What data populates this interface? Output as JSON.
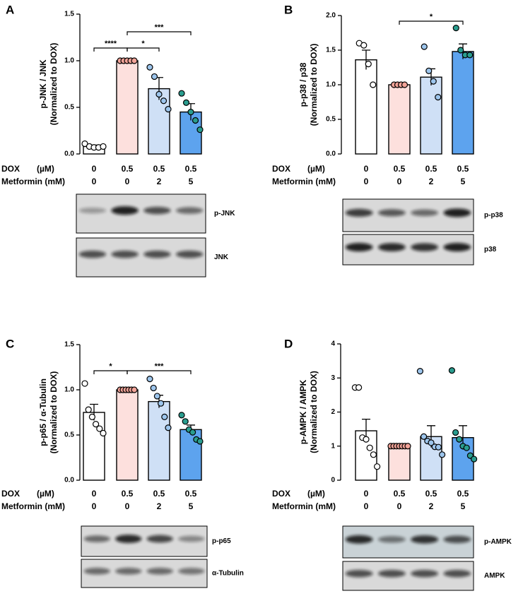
{
  "chart_data": [
    {
      "type": "bar",
      "panel": "A",
      "ylabel": [
        "p-JNK / JNK",
        "(Normalized to DOX)"
      ],
      "ylim": [
        0,
        1.5
      ],
      "yticks": [
        {
          "value": 0,
          "label": "0.0"
        },
        0.5,
        {
          "value": 1,
          "label": "1.0"
        },
        1.5
      ],
      "values": [
        0.08,
        1.0,
        0.7,
        0.45
      ],
      "errors": [
        0.015,
        0,
        0.12,
        0.09
      ],
      "colors": [
        "#ffffff",
        "#fde0dd",
        "#cfe0f6",
        "#5da3ee"
      ],
      "point_colors": [
        "#ffffff",
        "#f2a398",
        "#9dc5ec",
        "#2a9d8f"
      ],
      "points": [
        [
          0.11,
          0.08,
          0.07,
          0.07,
          0.08
        ],
        [
          1,
          1,
          1,
          1,
          1
        ],
        [
          0.93,
          0.83,
          0.64,
          0.57,
          0.48
        ],
        [
          0.65,
          0.55,
          0.45,
          0.36,
          0.26
        ]
      ],
      "conditions": [
        {
          "name": "DOX",
          "unit": "(µM)",
          "values": [
            0,
            0.5,
            0.5,
            0.5
          ]
        },
        {
          "name": "Metformin (mM)",
          "values": [
            0,
            0,
            2,
            5
          ]
        }
      ],
      "brackets": [
        {
          "pair": [
            0,
            1
          ],
          "label": "****"
        },
        {
          "pair": [
            1,
            2
          ],
          "label": "*"
        },
        {
          "pair": [
            1,
            3
          ],
          "label": "***"
        }
      ],
      "blots": [
        "p-JNK",
        "JNK"
      ]
    },
    {
      "type": "bar",
      "panel": "B",
      "ylabel": [
        "p-p38 / p38",
        "(Normalized to DOX)"
      ],
      "ylim": [
        0,
        2
      ],
      "yticks": [
        {
          "value": 0,
          "label": "0.0"
        },
        0.5,
        {
          "value": 1,
          "label": "1.0"
        },
        1.5,
        {
          "value": 2,
          "label": "2.0"
        }
      ],
      "values": [
        1.36,
        1.0,
        1.11,
        1.48
      ],
      "errors": [
        0.14,
        0,
        0.12,
        0.11
      ],
      "colors": [
        "#ffffff",
        "#fde0dd",
        "#cfe0f6",
        "#5da3ee"
      ],
      "point_colors": [
        "#ffffff",
        "#f2a398",
        "#9dc5ec",
        "#2a9d8f"
      ],
      "points": [
        [
          1.6,
          1.57,
          1.3,
          1.0
        ],
        [
          1,
          1,
          1,
          1
        ],
        [
          1.55,
          1.2,
          1.05,
          0.82
        ],
        [
          1.82,
          1.5,
          1.43,
          1.43
        ]
      ],
      "conditions": [
        {
          "name": "DOX",
          "unit": "(µM)",
          "values": [
            0,
            0.5,
            0.5,
            0.5
          ]
        },
        {
          "name": "Metformin (mM)",
          "values": [
            0,
            0,
            2,
            5
          ]
        }
      ],
      "brackets": [
        {
          "pair": [
            1,
            3
          ],
          "label": "*"
        }
      ],
      "blots": [
        "p-p38",
        "p38"
      ]
    },
    {
      "type": "bar",
      "panel": "C",
      "ylabel": [
        "p-p65 / α-Tubulin",
        "(Normalized to DOX)"
      ],
      "ylim": [
        0,
        1.5
      ],
      "yticks": [
        {
          "value": 0,
          "label": "0.0"
        },
        0.5,
        {
          "value": 1,
          "label": "1.0"
        },
        1.5
      ],
      "values": [
        0.75,
        1.0,
        0.87,
        0.56
      ],
      "errors": [
        0.09,
        0,
        0.07,
        0.05
      ],
      "colors": [
        "#ffffff",
        "#fde0dd",
        "#cfe0f6",
        "#5da3ee"
      ],
      "point_colors": [
        "#ffffff",
        "#f2a398",
        "#9dc5ec",
        "#2a9d8f"
      ],
      "points": [
        [
          1.07,
          0.78,
          0.7,
          0.62,
          0.57,
          0.52
        ],
        [
          1,
          1,
          1,
          1,
          1,
          1
        ],
        [
          1.12,
          1.02,
          0.93,
          0.85,
          0.7,
          0.58
        ],
        [
          0.72,
          0.65,
          0.56,
          0.53,
          0.45,
          0.43
        ]
      ],
      "conditions": [
        {
          "name": "DOX",
          "unit": "(µM)",
          "values": [
            0,
            0.5,
            0.5,
            0.5
          ]
        },
        {
          "name": "Metformin (mM)",
          "values": [
            0,
            0,
            2,
            5
          ]
        }
      ],
      "brackets": [
        {
          "pair": [
            0,
            1
          ],
          "label": "*"
        },
        {
          "pair": [
            1,
            3
          ],
          "label": "***"
        }
      ],
      "blots": [
        "p-p65",
        "α-Tubulin"
      ]
    },
    {
      "type": "bar",
      "panel": "D",
      "ylabel": [
        "p-AMPK / AMPK",
        "(Normalized to DOX)"
      ],
      "ylim": [
        0,
        4
      ],
      "yticks": [
        0,
        1,
        2,
        3,
        4
      ],
      "values": [
        1.45,
        1.0,
        1.28,
        1.25
      ],
      "errors": [
        0.34,
        0,
        0.32,
        0.35
      ],
      "colors": [
        "#ffffff",
        "#fde0dd",
        "#cfe0f6",
        "#5da3ee"
      ],
      "point_colors": [
        "#ffffff",
        "#f2a398",
        "#9dc5ec",
        "#2a9d8f"
      ],
      "points": [
        [
          2.72,
          2.72,
          1.25,
          1.2,
          0.95,
          0.75,
          0.4
        ],
        [
          1,
          1,
          1,
          1,
          1,
          1,
          1
        ],
        [
          3.2,
          1.28,
          1.15,
          1.1,
          0.98,
          0.97,
          0.75
        ],
        [
          3.22,
          1.4,
          1.2,
          1.0,
          0.95,
          0.72,
          0.62
        ]
      ],
      "conditions": [
        {
          "name": "DOX",
          "unit": "(µM)",
          "values": [
            0,
            0.5,
            0.5,
            0.5
          ]
        },
        {
          "name": "Metformin (mM)",
          "values": [
            0,
            0,
            2,
            5
          ]
        }
      ],
      "brackets": [],
      "blots": [
        "p-AMPK",
        "AMPK"
      ]
    }
  ]
}
